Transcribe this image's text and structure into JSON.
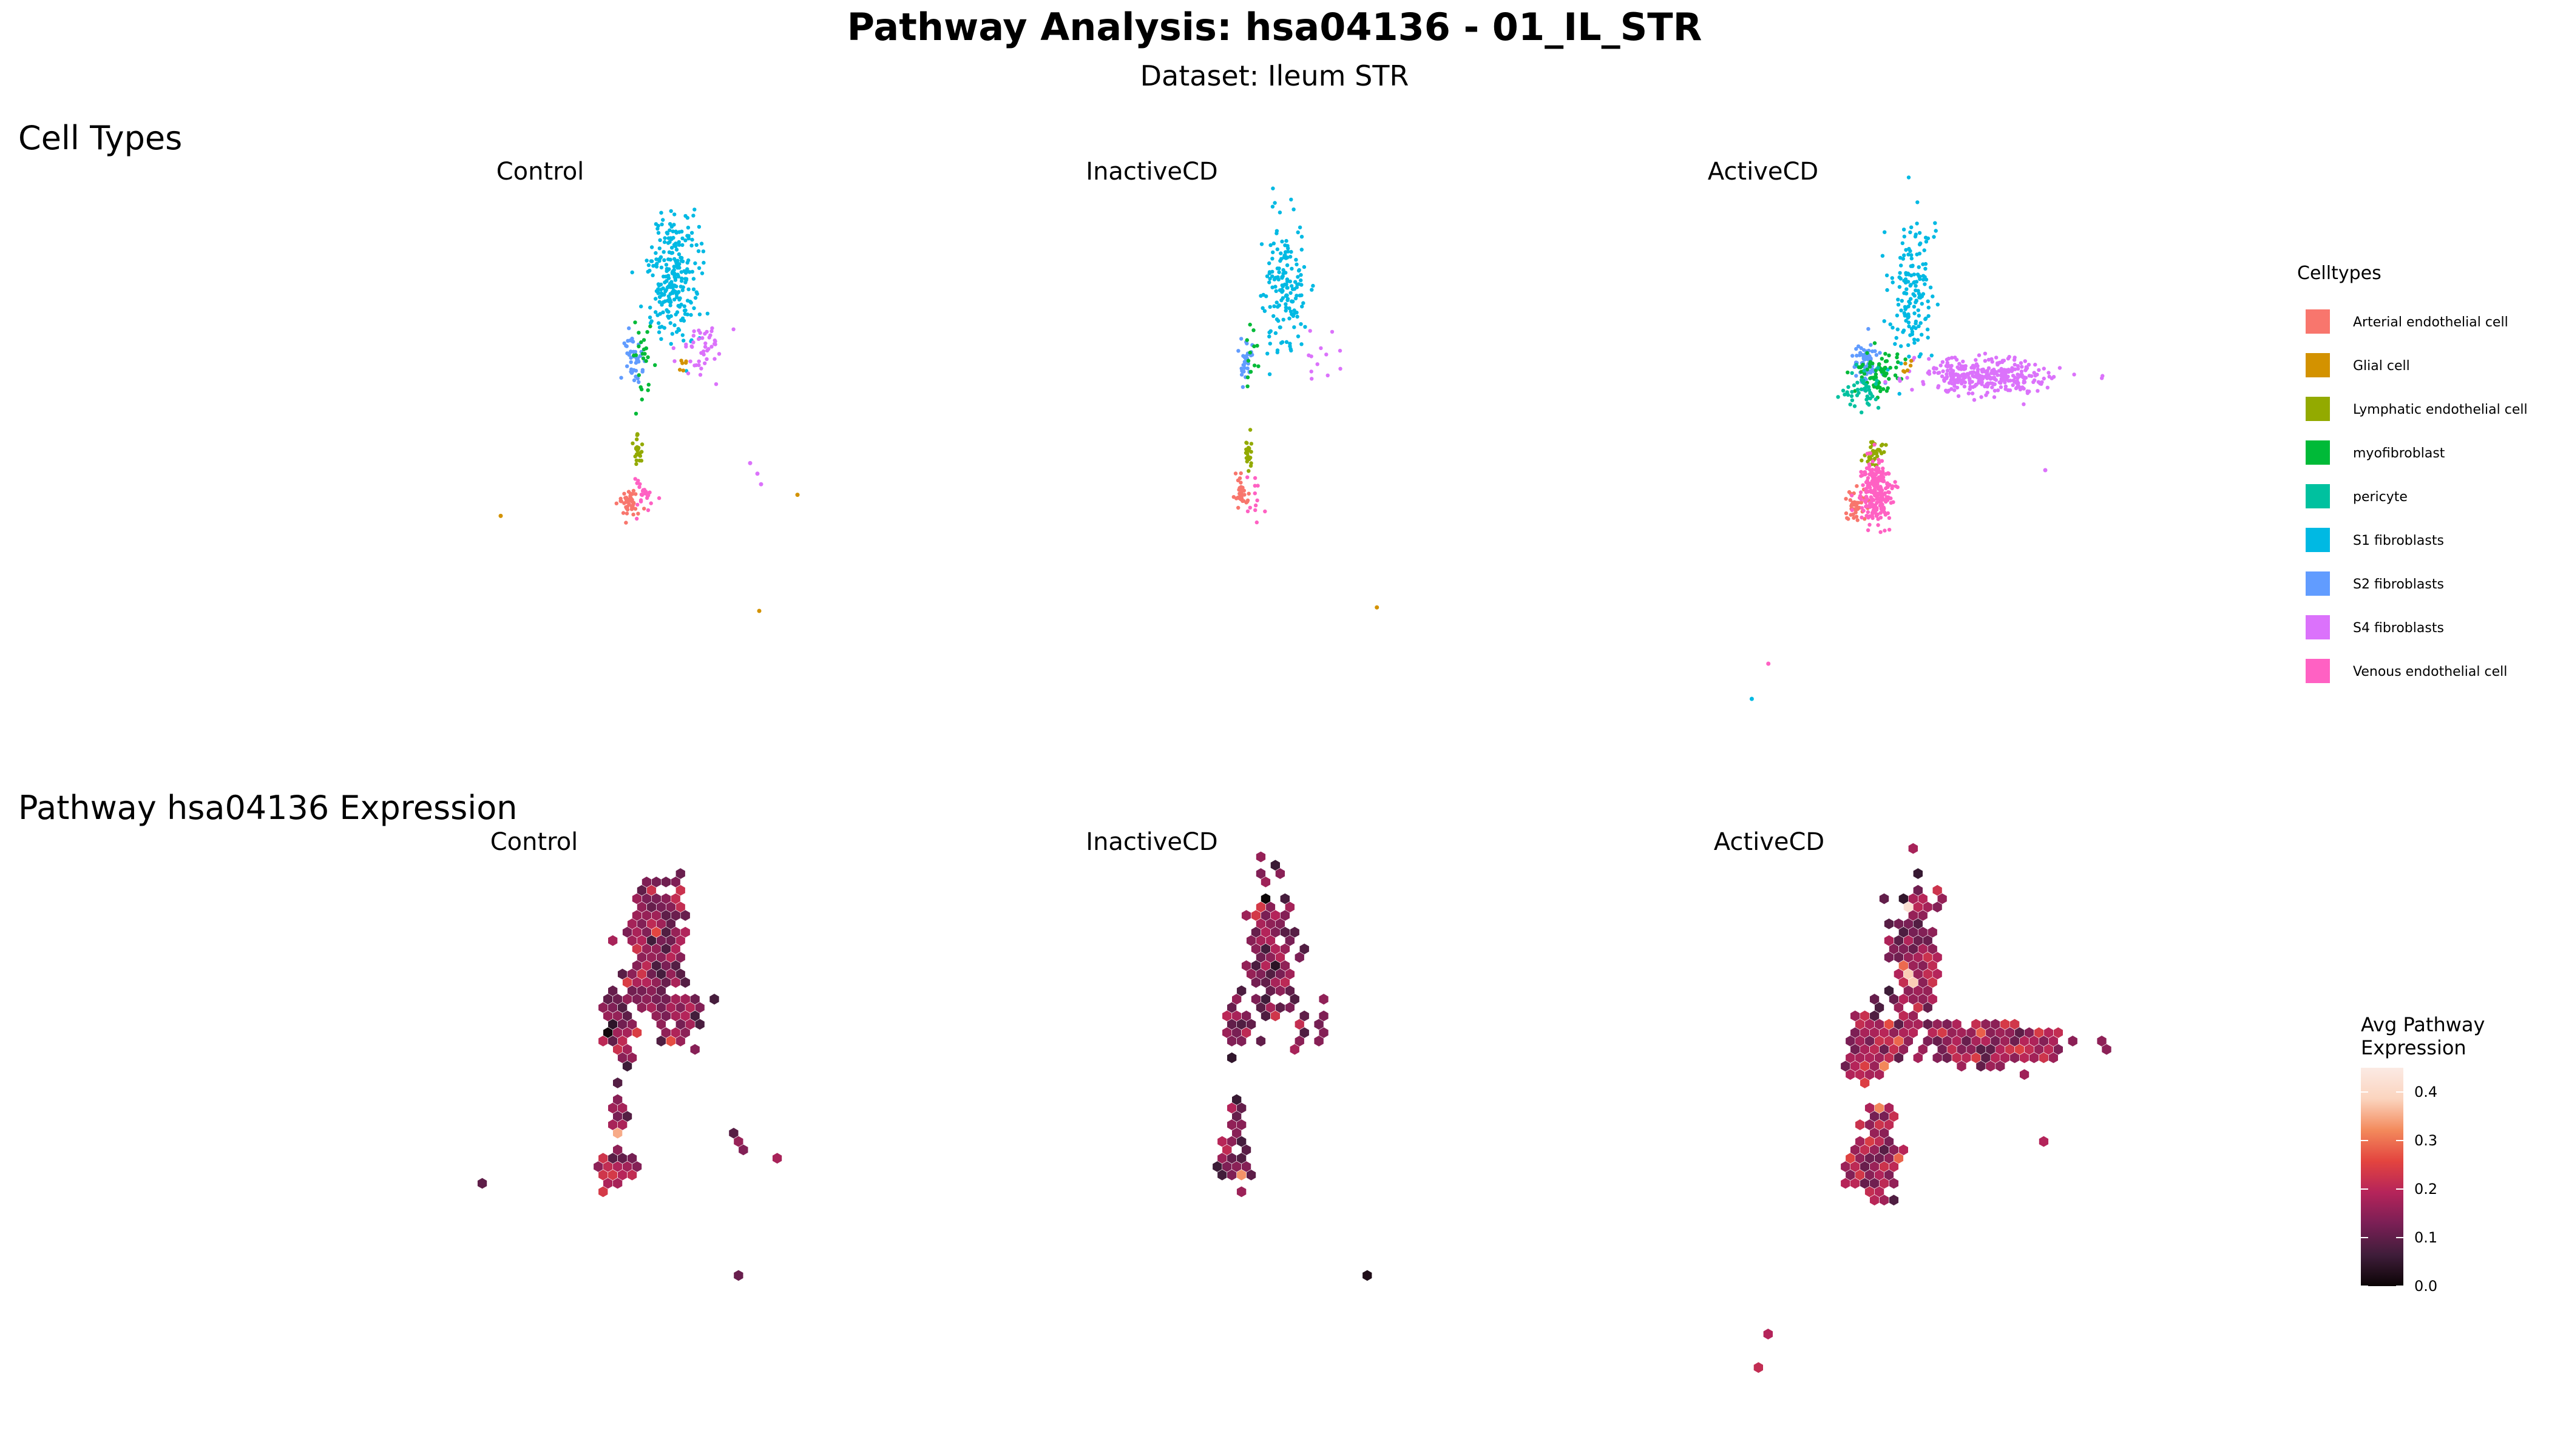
{
  "header": {
    "title": "Pathway Analysis: hsa04136 - 01_IL_STR",
    "subtitle": "Dataset: Ileum STR"
  },
  "sections": {
    "celltypes_title": "Cell Types",
    "pathway_title": "Pathway hsa04136 Expression"
  },
  "conditions": [
    "Control",
    "InactiveCD",
    "ActiveCD"
  ],
  "chart_data": [
    {
      "type": "scatter",
      "title": "Cell Types",
      "facets": [
        "Control",
        "InactiveCD",
        "ActiveCD"
      ],
      "legend": {
        "title": "Celltypes",
        "placement": "right",
        "entries": [
          {
            "name": "Arterial endothelial cell",
            "color": "#F8766D"
          },
          {
            "name": "Glial cell",
            "color": "#D39200"
          },
          {
            "name": "Lymphatic endothelial cell",
            "color": "#93AA00"
          },
          {
            "name": "myofibroblast",
            "color": "#00BA38"
          },
          {
            "name": "pericyte",
            "color": "#00C19F"
          },
          {
            "name": "S1 fibroblasts",
            "color": "#00B9E3"
          },
          {
            "name": "S2 fibroblasts",
            "color": "#619CFF"
          },
          {
            "name": "S4 fibroblasts",
            "color": "#DB72FB"
          },
          {
            "name": "Venous endothelial cell",
            "color": "#FF61C3"
          }
        ]
      },
      "clusters": [
        {
          "facet": "Control",
          "celltype": "S1 fibroblasts",
          "center": [
            0.5,
            0.2
          ],
          "spread": [
            0.14,
            0.18
          ],
          "n": 260
        },
        {
          "facet": "Control",
          "celltype": "S2 fibroblasts",
          "center": [
            0.28,
            0.43
          ],
          "spread": [
            0.05,
            0.07
          ],
          "n": 45
        },
        {
          "facet": "Control",
          "celltype": "myofibroblast",
          "center": [
            0.33,
            0.44
          ],
          "spread": [
            0.06,
            0.11
          ],
          "n": 25
        },
        {
          "facet": "Control",
          "celltype": "S4 fibroblasts",
          "center": [
            0.66,
            0.4
          ],
          "spread": [
            0.13,
            0.09
          ],
          "n": 45
        },
        {
          "facet": "Control",
          "celltype": "Glial cell",
          "center": [
            0.55,
            0.45
          ],
          "spread": [
            0.03,
            0.02
          ],
          "n": 6
        },
        {
          "facet": "Control",
          "celltype": "Lymphatic endothelial cell",
          "center": [
            0.3,
            0.7
          ],
          "spread": [
            0.02,
            0.04
          ],
          "n": 25
        },
        {
          "facet": "Control",
          "celltype": "Arterial endothelial cell",
          "center": [
            0.25,
            0.84
          ],
          "spread": [
            0.06,
            0.04
          ],
          "n": 45
        },
        {
          "facet": "Control",
          "celltype": "Venous endothelial cell",
          "center": [
            0.33,
            0.82
          ],
          "spread": [
            0.07,
            0.06
          ],
          "n": 25
        },
        {
          "facet": "InactiveCD",
          "celltype": "S1 fibroblasts",
          "center": [
            0.51,
            0.22
          ],
          "spread": [
            0.12,
            0.18
          ],
          "n": 160
        },
        {
          "facet": "InactiveCD",
          "celltype": "S2 fibroblasts",
          "center": [
            0.28,
            0.43
          ],
          "spread": [
            0.04,
            0.06
          ],
          "n": 30
        },
        {
          "facet": "InactiveCD",
          "celltype": "myofibroblast",
          "center": [
            0.32,
            0.42
          ],
          "spread": [
            0.05,
            0.07
          ],
          "n": 12
        },
        {
          "facet": "InactiveCD",
          "celltype": "S4 fibroblasts",
          "center": [
            0.68,
            0.42
          ],
          "spread": [
            0.14,
            0.07
          ],
          "n": 12
        },
        {
          "facet": "InactiveCD",
          "celltype": "Lymphatic endothelial cell",
          "center": [
            0.3,
            0.7
          ],
          "spread": [
            0.02,
            0.05
          ],
          "n": 25
        },
        {
          "facet": "InactiveCD",
          "celltype": "Arterial endothelial cell",
          "center": [
            0.26,
            0.82
          ],
          "spread": [
            0.04,
            0.05
          ],
          "n": 30
        },
        {
          "facet": "InactiveCD",
          "celltype": "Venous endothelial cell",
          "center": [
            0.35,
            0.82
          ],
          "spread": [
            0.06,
            0.07
          ],
          "n": 12
        },
        {
          "facet": "ActiveCD",
          "celltype": "S1 fibroblasts",
          "center": [
            0.44,
            0.25
          ],
          "spread": [
            0.1,
            0.2
          ],
          "n": 160
        },
        {
          "facet": "ActiveCD",
          "celltype": "S2 fibroblasts",
          "center": [
            0.25,
            0.45
          ],
          "spread": [
            0.06,
            0.06
          ],
          "n": 80
        },
        {
          "facet": "ActiveCD",
          "celltype": "myofibroblast",
          "center": [
            0.3,
            0.47
          ],
          "spread": [
            0.1,
            0.07
          ],
          "n": 70
        },
        {
          "facet": "ActiveCD",
          "celltype": "pericyte",
          "center": [
            0.23,
            0.52
          ],
          "spread": [
            0.07,
            0.05
          ],
          "n": 45
        },
        {
          "facet": "ActiveCD",
          "celltype": "S4 fibroblasts",
          "center": [
            0.74,
            0.48
          ],
          "spread": [
            0.28,
            0.05
          ],
          "n": 340
        },
        {
          "facet": "ActiveCD",
          "celltype": "Glial cell",
          "center": [
            0.41,
            0.46
          ],
          "spread": [
            0.02,
            0.02
          ],
          "n": 6
        },
        {
          "facet": "ActiveCD",
          "celltype": "Lymphatic endothelial cell",
          "center": [
            0.28,
            0.7
          ],
          "spread": [
            0.05,
            0.03
          ],
          "n": 35
        },
        {
          "facet": "ActiveCD",
          "celltype": "Arterial endothelial cell",
          "center": [
            0.2,
            0.85
          ],
          "spread": [
            0.05,
            0.05
          ],
          "n": 40
        },
        {
          "facet": "ActiveCD",
          "celltype": "Venous endothelial cell",
          "center": [
            0.29,
            0.81
          ],
          "spread": [
            0.07,
            0.09
          ],
          "n": 220
        }
      ],
      "outliers": [
        {
          "facet": "Control",
          "celltype": "S4 fibroblasts",
          "x": 0.92,
          "y": 0.73
        },
        {
          "facet": "Control",
          "celltype": "S4 fibroblasts",
          "x": 0.96,
          "y": 0.76
        },
        {
          "facet": "Control",
          "celltype": "S4 fibroblasts",
          "x": 0.98,
          "y": 0.79
        },
        {
          "facet": "Control",
          "celltype": "Glial cell",
          "x": -0.45,
          "y": 0.88
        },
        {
          "facet": "Control",
          "celltype": "Glial cell",
          "x": 1.18,
          "y": 0.82
        },
        {
          "facet": "Control",
          "celltype": "Glial cell",
          "x": 0.97,
          "y": 1.15
        },
        {
          "facet": "InactiveCD",
          "celltype": "Glial cell",
          "x": 1.03,
          "y": 1.14
        },
        {
          "facet": "ActiveCD",
          "celltype": "S4 fibroblasts",
          "x": 1.0,
          "y": 0.75
        },
        {
          "facet": "ActiveCD",
          "celltype": "Venous endothelial cell",
          "x": -0.17,
          "y": 1.3
        },
        {
          "facet": "ActiveCD",
          "celltype": "S1 fibroblasts",
          "x": -0.24,
          "y": 1.4
        }
      ]
    },
    {
      "type": "heatmap",
      "title": "Pathway hsa04136 Expression",
      "facets": [
        "Control",
        "InactiveCD",
        "ActiveCD"
      ],
      "geometry": "hexbin",
      "colorbar": {
        "title": "Avg Pathway Expression",
        "range": [
          0.0,
          0.45
        ],
        "ticks": [
          "0.0",
          "0.1",
          "0.2",
          "0.3",
          "0.4"
        ],
        "stops": [
          "#0B0405",
          "#3F1D3A",
          "#7A1F55",
          "#B5245A",
          "#E3443F",
          "#F38A5C",
          "#FBD4BE",
          "#FBEAE4"
        ]
      },
      "mean_expression": {
        "Control": 0.15,
        "InactiveCD": 0.13,
        "ActiveCD": 0.17
      },
      "hotspots": [
        {
          "facet": "Control",
          "x": 0.52,
          "y": 0.6,
          "value": 0.4
        },
        {
          "facet": "Control",
          "x": 0.27,
          "y": 0.57,
          "value": 0.33
        },
        {
          "facet": "Control",
          "x": 0.3,
          "y": 0.75,
          "value": 0.35
        },
        {
          "facet": "InactiveCD",
          "x": 0.45,
          "y": 0.45,
          "value": 0.34
        },
        {
          "facet": "InactiveCD",
          "x": 0.32,
          "y": 0.86,
          "value": 0.33
        },
        {
          "facet": "ActiveCD",
          "x": 0.4,
          "y": 0.1,
          "value": 0.42
        },
        {
          "facet": "ActiveCD",
          "x": 0.42,
          "y": 0.3,
          "value": 0.38
        },
        {
          "facet": "ActiveCD",
          "x": 0.3,
          "y": 0.55,
          "value": 0.32
        }
      ]
    }
  ]
}
